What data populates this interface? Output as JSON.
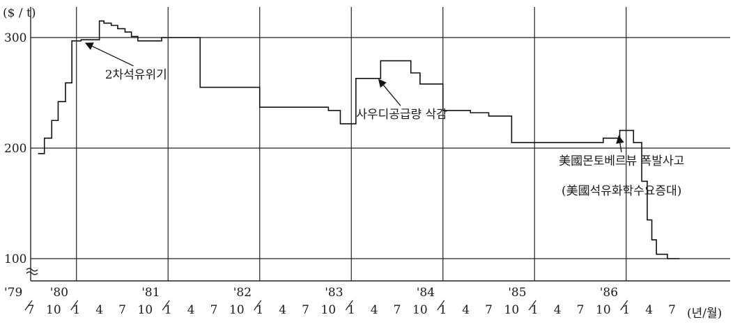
{
  "chart_data": {
    "type": "line",
    "step": true,
    "title": "",
    "ylabel": "($ / t)",
    "xlabel": "(년/월)",
    "ylim": [
      93,
      330
    ],
    "y_break_below": 100,
    "y_ticks": [
      300,
      200,
      100
    ],
    "year_labels": [
      {
        "x": 1979.5,
        "label": "'79"
      },
      {
        "x": 1980.0,
        "label": "'80"
      },
      {
        "x": 1981.0,
        "label": "'81"
      },
      {
        "x": 1982.0,
        "label": "'82"
      },
      {
        "x": 1983.0,
        "label": "'83"
      },
      {
        "x": 1984.0,
        "label": "'84"
      },
      {
        "x": 1985.0,
        "label": "'85"
      },
      {
        "x": 1986.0,
        "label": "'86"
      }
    ],
    "month_ticks": [
      {
        "x": 1979.5,
        "label": "7"
      },
      {
        "x": 1979.75,
        "label": "10"
      },
      {
        "x": 1980.0,
        "label": "1"
      },
      {
        "x": 1980.25,
        "label": "4"
      },
      {
        "x": 1980.5,
        "label": "7"
      },
      {
        "x": 1980.75,
        "label": "10"
      },
      {
        "x": 1981.0,
        "label": "1"
      },
      {
        "x": 1981.25,
        "label": "4"
      },
      {
        "x": 1981.5,
        "label": "7"
      },
      {
        "x": 1981.75,
        "label": "10"
      },
      {
        "x": 1982.0,
        "label": "1"
      },
      {
        "x": 1982.25,
        "label": "4"
      },
      {
        "x": 1982.5,
        "label": "7"
      },
      {
        "x": 1982.75,
        "label": "10"
      },
      {
        "x": 1983.0,
        "label": "1"
      },
      {
        "x": 1983.25,
        "label": "4"
      },
      {
        "x": 1983.5,
        "label": "7"
      },
      {
        "x": 1983.75,
        "label": "10"
      },
      {
        "x": 1984.0,
        "label": "1"
      },
      {
        "x": 1984.25,
        "label": "4"
      },
      {
        "x": 1984.5,
        "label": "7"
      },
      {
        "x": 1984.75,
        "label": "10"
      },
      {
        "x": 1985.0,
        "label": "1"
      },
      {
        "x": 1985.25,
        "label": "4"
      },
      {
        "x": 1985.5,
        "label": "7"
      },
      {
        "x": 1985.75,
        "label": "10"
      },
      {
        "x": 1986.0,
        "label": "1"
      },
      {
        "x": 1986.25,
        "label": "4"
      },
      {
        "x": 1986.5,
        "label": "7"
      }
    ],
    "series": [
      {
        "x": [
          1979.58,
          1979.65,
          1979.73,
          1979.8,
          1979.88,
          1979.95,
          1980.05,
          1980.25,
          1980.3,
          1980.38,
          1980.45,
          1980.53,
          1980.6,
          1980.67,
          1980.75,
          1980.93,
          1981.0,
          1981.12,
          1981.35,
          1981.55,
          1981.75,
          1982.0,
          1982.25,
          1982.75,
          1982.88,
          1983.0,
          1983.05,
          1983.15,
          1983.32,
          1983.52,
          1983.65,
          1983.75,
          1984.0,
          1984.3,
          1984.5,
          1984.75,
          1985.0,
          1985.5,
          1985.75,
          1985.93,
          1986.08,
          1986.17,
          1986.23,
          1986.28,
          1986.33,
          1986.38,
          1986.45,
          1986.5,
          1986.52
        ],
        "values": [
          195,
          209,
          225,
          242,
          259,
          297,
          298,
          315,
          313,
          311,
          308,
          305,
          301,
          297,
          297,
          300,
          300,
          300,
          255,
          255,
          255,
          237,
          237,
          234,
          222,
          222,
          263,
          263,
          279,
          279,
          268,
          258,
          234,
          232,
          229,
          205,
          205,
          205,
          209,
          216,
          205,
          170,
          135,
          117,
          104,
          104,
          100,
          100,
          100
        ]
      }
    ],
    "annotations": [
      {
        "text": "2차석유위기",
        "x": 1980.65,
        "y": 263,
        "arrow_to": {
          "x": 1980.1,
          "y": 295
        }
      },
      {
        "text": "사우디공급량 삭감",
        "x": 1983.55,
        "y": 227,
        "arrow_to": {
          "x": 1983.3,
          "y": 262
        }
      },
      {
        "text": "美國몬토베르뷰 폭발사고",
        "x": 1985.95,
        "y": 185,
        "arrow_to": {
          "x": 1985.92,
          "y": 211
        }
      },
      {
        "text": "(美國석유화학수요증대)",
        "x": 1985.95,
        "y": 158
      }
    ],
    "grid": true
  }
}
